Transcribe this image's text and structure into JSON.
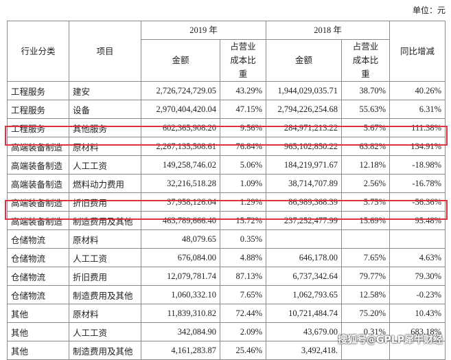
{
  "unit": "单位：元",
  "table": {
    "header": {
      "industry": "行业分类",
      "item": "项目",
      "year_2019": "2019 年",
      "year_2018": "2018 年",
      "amount": "金额",
      "ratio": "占营业成本比重",
      "change": "同比增减"
    },
    "rows": [
      [
        "工程服务",
        "建安",
        "2,726,724,729.05",
        "43.29%",
        "1,944,029,035.71",
        "38.70%",
        "40.26%"
      ],
      [
        "工程服务",
        "设备",
        "2,970,404,420.04",
        "47.15%",
        "2,794,226,254.68",
        "55.63%",
        "6.31%"
      ],
      [
        "工程服务",
        "其他服务",
        "602,365,908.20",
        "9.56%",
        "284,971,213.22",
        "5.67%",
        "111.38%"
      ],
      [
        "高端装备制造",
        "原材料",
        "2,267,135,508.61",
        "76.84%",
        "965,102,850.22",
        "63.82%",
        "134.91%"
      ],
      [
        "高端装备制造",
        "人工工资",
        "149,258,746.02",
        "5.06%",
        "184,219,971.67",
        "12.18%",
        "-18.98%"
      ],
      [
        "高端装备制造",
        "燃料动力费用",
        "32,216,518.28",
        "1.09%",
        "38,714,707.89",
        "2.56%",
        "-16.78%"
      ],
      [
        "高端装备制造",
        "折旧费用",
        "37,958,126.04",
        "1.29%",
        "86,989,368.39",
        "5.75%",
        "-56.36%"
      ],
      [
        "高端装备制造",
        "制造费用及其他",
        "463,789,666.40",
        "15.72%",
        "237,252,477.99",
        "15.69%",
        "95.48%"
      ],
      [
        "仓储物流",
        "原材料",
        "48,079.65",
        "0.35%",
        null,
        null,
        null
      ],
      [
        "仓储物流",
        "人工工资",
        "676,084.00",
        "4.88%",
        "646,178.00",
        "7.65%",
        "4.63%"
      ],
      [
        "仓储物流",
        "折旧费用",
        "12,079,781.74",
        "87.13%",
        "6,737,342.64",
        "79.77%",
        "79.30%"
      ],
      [
        "仓储物流",
        "制造费用及其他",
        "1,060,332.10",
        "7.65%",
        "1,062,793.65",
        "12.58%",
        "-0.23%"
      ],
      [
        "其他",
        "原材料",
        "11,839,310.82",
        "72.44%",
        "10,721,484.74",
        "75.20%",
        "10.43%"
      ],
      [
        "其他",
        "人工工资",
        "342,084.90",
        "2.09%",
        "43,679.00",
        "0.31%",
        "683.18%"
      ],
      [
        "其他",
        "制造费用及其他",
        "4,161,283.87",
        "25.46%",
        "3,492,418.",
        "",
        ""
      ]
    ]
  },
  "watermark": "搜狐号@GPLP犀牛财经"
}
